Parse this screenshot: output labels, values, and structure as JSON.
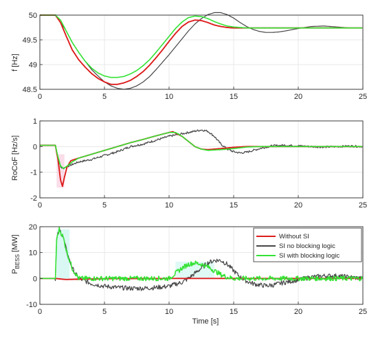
{
  "colors": {
    "without_si": "#dd1c1c",
    "si_no_blocking": "#454545",
    "si_with_blocking": "#33e233",
    "grid": "#e3e3e3",
    "axis": "#262626",
    "shade_pink": "#f7c6d8",
    "shade_cyan": "#c9f5ef"
  },
  "chart_data": [
    {
      "type": "line",
      "ylabel": "f [Hz]",
      "xlabel": "",
      "xlim": [
        0,
        25
      ],
      "ylim": [
        48.5,
        50
      ],
      "xticks": [
        "0",
        "5",
        "10",
        "15",
        "20",
        "25"
      ],
      "yticks": [
        "48.5",
        "49",
        "49.5",
        "50"
      ],
      "grid": true,
      "series": [
        {
          "name": "Without SI",
          "x": [
            0,
            1.2,
            1.6,
            2,
            2.5,
            3,
            3.5,
            4,
            4.5,
            5,
            5.5,
            6,
            6.5,
            7,
            7.5,
            8,
            8.5,
            9,
            9.5,
            10,
            10.5,
            11,
            11.5,
            12,
            12.5,
            13,
            13.5,
            14,
            14.5,
            15,
            16,
            17,
            18,
            19,
            20,
            21,
            22,
            23,
            24,
            25
          ],
          "y": [
            50,
            50,
            49.85,
            49.6,
            49.3,
            49.1,
            48.95,
            48.82,
            48.72,
            48.65,
            48.6,
            48.6,
            48.63,
            48.68,
            48.76,
            48.86,
            48.99,
            49.14,
            49.3,
            49.47,
            49.63,
            49.77,
            49.86,
            49.9,
            49.89,
            49.85,
            49.8,
            49.77,
            49.75,
            49.74,
            49.74,
            49.74,
            49.74,
            49.74,
            49.74,
            49.74,
            49.74,
            49.74,
            49.74,
            49.74
          ]
        },
        {
          "name": "SI no blocking logic",
          "x": [
            0,
            1.2,
            1.6,
            2,
            2.5,
            3,
            3.5,
            4,
            4.5,
            5,
            5.5,
            6,
            6.5,
            7,
            7.5,
            8,
            8.5,
            9,
            9.5,
            10,
            10.5,
            11,
            11.5,
            12,
            12.5,
            13,
            13.5,
            14,
            14.5,
            15,
            15.5,
            16,
            16.5,
            17,
            17.5,
            18,
            18.5,
            19,
            20,
            21,
            22,
            23,
            24,
            25
          ],
          "y": [
            50,
            50,
            49.85,
            49.7,
            49.45,
            49.25,
            49.07,
            48.9,
            48.77,
            48.65,
            48.57,
            48.52,
            48.5,
            48.52,
            48.57,
            48.65,
            48.76,
            48.9,
            49.05,
            49.2,
            49.36,
            49.52,
            49.68,
            49.82,
            49.93,
            50.01,
            50.05,
            50.05,
            50.01,
            49.94,
            49.85,
            49.77,
            49.71,
            49.67,
            49.65,
            49.65,
            49.66,
            49.68,
            49.73,
            49.77,
            49.78,
            49.76,
            49.74,
            49.74
          ]
        },
        {
          "name": "SI with blocking logic",
          "x": [
            0,
            1.2,
            1.6,
            2,
            2.5,
            3,
            3.5,
            4,
            4.5,
            5,
            5.5,
            6,
            6.5,
            7,
            7.5,
            8,
            8.5,
            9,
            9.5,
            10,
            10.5,
            11,
            11.5,
            12,
            12.5,
            13,
            13.5,
            14,
            14.5,
            15,
            16,
            17,
            18,
            19,
            20,
            21,
            22,
            23,
            24,
            25
          ],
          "y": [
            50,
            50,
            49.9,
            49.7,
            49.45,
            49.25,
            49.07,
            48.93,
            48.83,
            48.77,
            48.74,
            48.74,
            48.76,
            48.81,
            48.88,
            48.98,
            49.1,
            49.25,
            49.41,
            49.57,
            49.73,
            49.86,
            49.95,
            49.98,
            49.97,
            49.93,
            49.87,
            49.82,
            49.78,
            49.76,
            49.74,
            49.74,
            49.74,
            49.74,
            49.74,
            49.74,
            49.74,
            49.74,
            49.74,
            49.74
          ]
        }
      ]
    },
    {
      "type": "line",
      "ylabel": "RoCoF [Hz/s]",
      "xlabel": "",
      "xlim": [
        0,
        25
      ],
      "ylim": [
        -2,
        1
      ],
      "xticks": [
        "0",
        "5",
        "10",
        "15",
        "20",
        "25"
      ],
      "yticks": [
        "-2",
        "-1",
        "0",
        "1"
      ],
      "grid": true,
      "series": [
        {
          "name": "Without SI",
          "x": [
            0,
            1.2,
            1.4,
            1.6,
            1.75,
            1.9,
            2.1,
            2.4,
            3,
            4,
            5,
            6,
            7,
            8,
            9,
            10,
            10.3,
            10.6,
            11,
            11.5,
            12,
            12.5,
            13,
            14,
            15,
            16,
            17,
            18,
            19,
            20,
            21,
            22,
            23,
            24,
            25
          ],
          "y": [
            0.05,
            0.05,
            -0.5,
            -1.3,
            -1.55,
            -1.2,
            -0.8,
            -0.55,
            -0.45,
            -0.3,
            -0.15,
            0,
            0.15,
            0.28,
            0.42,
            0.55,
            0.58,
            0.5,
            0.4,
            0.2,
            0,
            -0.1,
            -0.12,
            -0.08,
            -0.03,
            0,
            0,
            0,
            0,
            0,
            0,
            0,
            0,
            0,
            0
          ]
        },
        {
          "name": "SI no blocking logic",
          "x": [
            0,
            1.2,
            1.4,
            1.6,
            1.8,
            2,
            2.5,
            3,
            4,
            5,
            6,
            7,
            8,
            9,
            10,
            11,
            12,
            12.5,
            13,
            13.5,
            14,
            14.5,
            15,
            15.5,
            16,
            16.5,
            17,
            17.5,
            18,
            19,
            20,
            21,
            22,
            23,
            24,
            25
          ],
          "y": [
            0.05,
            0.05,
            -0.4,
            -0.8,
            -0.85,
            -0.8,
            -0.7,
            -0.6,
            -0.5,
            -0.35,
            -0.2,
            0,
            0.1,
            0.25,
            0.4,
            0.5,
            0.6,
            0.65,
            0.6,
            0.4,
            0.1,
            -0.1,
            -0.2,
            -0.25,
            -0.22,
            -0.15,
            -0.08,
            -0.02,
            0.03,
            0.05,
            0.03,
            0,
            -0.02,
            0,
            0.02,
            0
          ]
        },
        {
          "name": "SI with blocking logic",
          "x": [
            0,
            1.2,
            1.4,
            1.6,
            1.8,
            2,
            2.5,
            3,
            4,
            5,
            6,
            7,
            8,
            9,
            10,
            10.5,
            11,
            11.5,
            12,
            12.5,
            13,
            14,
            15,
            16,
            17,
            18,
            19,
            20,
            21,
            22,
            23,
            24,
            25
          ],
          "y": [
            0.05,
            0.05,
            -0.4,
            -0.75,
            -0.85,
            -0.8,
            -0.6,
            -0.45,
            -0.3,
            -0.15,
            0,
            0.15,
            0.28,
            0.42,
            0.55,
            0.55,
            0.4,
            0.2,
            0,
            -0.1,
            -0.15,
            -0.12,
            -0.08,
            -0.02,
            0,
            0,
            0,
            0,
            0,
            0,
            0,
            0,
            0
          ]
        }
      ]
    },
    {
      "type": "line",
      "ylabel": "P",
      "ylabel_sub": "BESS",
      "ylabel_unit": " [MW]",
      "xlabel": "Time [s]",
      "xlim": [
        0,
        25
      ],
      "ylim": [
        -10,
        20
      ],
      "xticks": [
        "0",
        "5",
        "10",
        "15",
        "20",
        "25"
      ],
      "yticks": [
        "-10",
        "0",
        "10",
        "20"
      ],
      "grid": true,
      "legend": {
        "placement": "top-right"
      },
      "series": [
        {
          "name": "Without SI",
          "x": [
            0,
            1.2,
            2,
            3,
            5,
            10,
            15,
            20,
            25
          ],
          "y": [
            0,
            0,
            -0.4,
            -0.3,
            -0.1,
            0,
            0,
            0,
            0
          ]
        },
        {
          "name": "SI no blocking logic",
          "x": [
            0,
            1.2,
            1.3,
            1.5,
            1.8,
            2.1,
            2.5,
            3,
            4,
            5,
            6,
            7,
            8,
            9,
            10,
            10.5,
            11,
            11.5,
            12,
            12.5,
            13,
            13.5,
            14,
            14.5,
            15,
            15.5,
            16,
            16.5,
            17,
            17.5,
            18,
            18.5,
            19,
            20,
            21,
            22,
            23,
            24,
            25
          ],
          "y": [
            0,
            0,
            15,
            19,
            16,
            10,
            4,
            0,
            -2,
            -3,
            -3.5,
            -3.8,
            -3.8,
            -3.5,
            -3,
            -2.2,
            -1.5,
            0,
            2,
            4,
            6,
            7,
            7,
            5.5,
            3,
            0.5,
            -1,
            -2,
            -2.5,
            -2.8,
            -2.6,
            -2,
            -1.5,
            -0.5,
            0.5,
            1,
            1,
            0.5,
            0
          ]
        },
        {
          "name": "SI with blocking logic",
          "x": [
            0,
            1.2,
            1.3,
            1.5,
            1.8,
            2.1,
            2.5,
            3,
            5,
            8,
            10,
            10.5,
            11,
            11.5,
            12,
            12.5,
            13,
            13.5,
            14,
            14.5,
            15,
            16,
            18,
            20,
            22,
            25
          ],
          "y": [
            0,
            0,
            15,
            19,
            16,
            10,
            4,
            0,
            0,
            0,
            0,
            2,
            4,
            5.5,
            6,
            5.5,
            4.5,
            3,
            1.5,
            0.5,
            0,
            0,
            0,
            0,
            0,
            0
          ]
        }
      ]
    }
  ]
}
